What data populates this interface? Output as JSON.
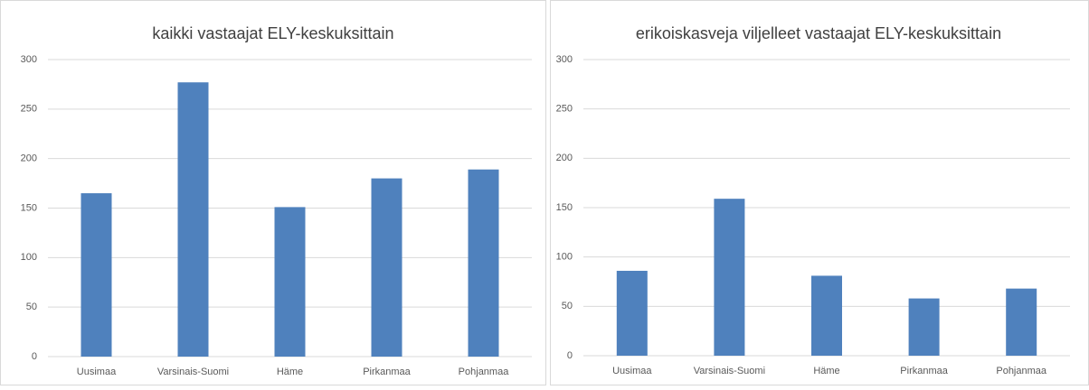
{
  "chart_data": [
    {
      "type": "bar",
      "title": "kaikki vastaajat ELY-keskuksittain",
      "categories": [
        "Uusimaa",
        "Varsinais-Suomi",
        "Häme",
        "Pirkanmaa",
        "Pohjanmaa"
      ],
      "values": [
        165,
        277,
        151,
        180,
        189
      ],
      "color": "#4f81bd",
      "ylim": [
        0,
        300
      ],
      "yticks": [
        0,
        50,
        100,
        150,
        200,
        250,
        300
      ],
      "grid": true
    },
    {
      "type": "bar",
      "title": "erikoiskasveja viljelleet vastaajat ELY-keskuksittain",
      "categories": [
        "Uusimaa",
        "Varsinais-Suomi",
        "Häme",
        "Pirkanmaa",
        "Pohjanmaa"
      ],
      "values": [
        86,
        159,
        81,
        58,
        68
      ],
      "color": "#4f81bd",
      "ylim": [
        0,
        300
      ],
      "yticks": [
        0,
        50,
        100,
        150,
        200,
        250,
        300
      ],
      "grid": true
    }
  ]
}
